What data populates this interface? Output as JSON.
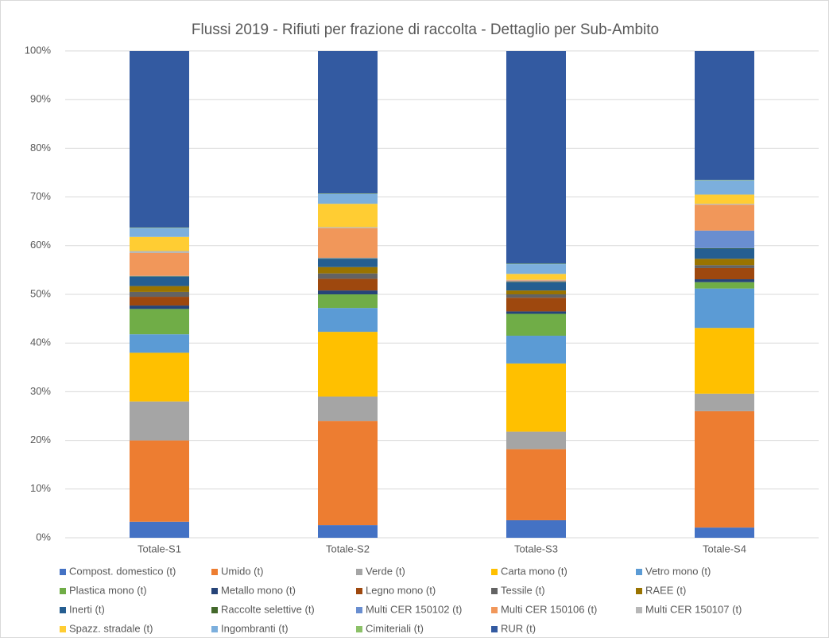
{
  "chart_data": {
    "type": "stacked_bar",
    "title": "Flussi 2019 - Rifiuti per frazione di raccolta - Dettaglio per Sub-Ambito",
    "categories": [
      "Totale-S1",
      "Totale-S2",
      "Totale-S3",
      "Totale-S4"
    ],
    "ylim": [
      0,
      100
    ],
    "yticks": [
      {
        "value": 0,
        "label": "0%"
      },
      {
        "value": 10,
        "label": "10%"
      },
      {
        "value": 20,
        "label": "20%"
      },
      {
        "value": 30,
        "label": "30%"
      },
      {
        "value": 40,
        "label": "40%"
      },
      {
        "value": 50,
        "label": "50%"
      },
      {
        "value": 60,
        "label": "60%"
      },
      {
        "value": 70,
        "label": "70%"
      },
      {
        "value": 80,
        "label": "80%"
      },
      {
        "value": 90,
        "label": "90%"
      },
      {
        "value": 100,
        "label": "100%"
      }
    ],
    "grid": true,
    "legend": "bottom",
    "series": [
      {
        "name": "Compost. domestico (t)",
        "color": "#4472C4",
        "values": [
          3.3,
          2.6,
          3.6,
          2.1
        ]
      },
      {
        "name": "Umido (t)",
        "color": "#ED7D31",
        "values": [
          16.7,
          21.4,
          14.6,
          23.9
        ]
      },
      {
        "name": "Verde (t)",
        "color": "#A5A5A5",
        "values": [
          8.0,
          5.0,
          3.6,
          3.6
        ]
      },
      {
        "name": "Carta mono (t)",
        "color": "#FFC000",
        "values": [
          10.0,
          13.3,
          14.0,
          13.5
        ]
      },
      {
        "name": "Vetro mono (t)",
        "color": "#5B9BD5",
        "values": [
          3.8,
          4.9,
          5.7,
          8.1
        ]
      },
      {
        "name": "Plastica mono (t)",
        "color": "#70AD47",
        "values": [
          5.2,
          2.8,
          4.5,
          1.3
        ]
      },
      {
        "name": "Metallo mono (t)",
        "color": "#264478",
        "values": [
          0.7,
          0.8,
          0.5,
          0.6
        ]
      },
      {
        "name": "Legno mono (t)",
        "color": "#9E480E",
        "values": [
          1.8,
          2.4,
          2.8,
          2.3
        ]
      },
      {
        "name": "Tessile (t)",
        "color": "#636363",
        "values": [
          1.0,
          1.1,
          0.7,
          0.6
        ]
      },
      {
        "name": "RAEE (t)",
        "color": "#997300",
        "values": [
          1.2,
          1.3,
          0.8,
          1.3
        ]
      },
      {
        "name": "Inerti (t)",
        "color": "#255E91",
        "values": [
          1.9,
          1.7,
          1.7,
          2.1
        ]
      },
      {
        "name": "Raccolte selettive (t)",
        "color": "#43682B",
        "values": [
          0.1,
          0.1,
          0.1,
          0.1
        ]
      },
      {
        "name": "Multi CER 150102 (t)",
        "color": "#698ED0",
        "values": [
          0.1,
          0.1,
          0.1,
          3.6
        ]
      },
      {
        "name": "Multi CER 150106 (t)",
        "color": "#F1975A",
        "values": [
          4.7,
          6.1,
          0.2,
          5.3
        ]
      },
      {
        "name": "Multi CER 150107 (t)",
        "color": "#B7B7B7",
        "values": [
          0.4,
          0.2,
          0.1,
          0.2
        ]
      },
      {
        "name": "Spazz. stradale (t)",
        "color": "#FFCD33",
        "values": [
          2.9,
          4.8,
          1.2,
          1.9
        ]
      },
      {
        "name": "Ingombranti (t)",
        "color": "#7CAFDD",
        "values": [
          1.8,
          2.0,
          2.0,
          2.9
        ]
      },
      {
        "name": "Cimiteriali (t)",
        "color": "#8CC168",
        "values": [
          0.1,
          0.1,
          0.1,
          0.1
        ]
      },
      {
        "name": "RUR (t)",
        "color": "#335AA1",
        "values": [
          36.3,
          29.3,
          43.7,
          26.5
        ]
      }
    ]
  }
}
